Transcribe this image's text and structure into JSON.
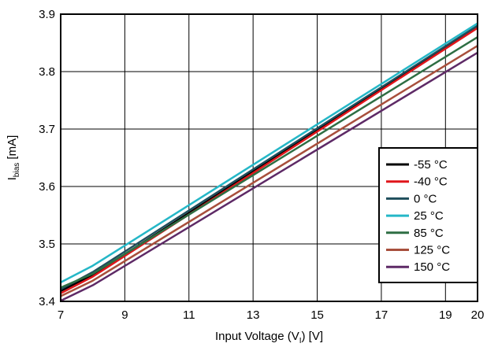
{
  "chart_data": {
    "type": "line",
    "title": "",
    "xlabel": {
      "main": "Input Voltage (V",
      "sub": "I",
      "tail": ") [V]"
    },
    "ylabel": {
      "main": "I",
      "sub": "bias",
      "tail": " [mA]"
    },
    "xlim": [
      7,
      20
    ],
    "ylim": [
      3.4,
      3.9
    ],
    "xticks": [
      7,
      9,
      11,
      13,
      15,
      17,
      19,
      20
    ],
    "xtick_labels": [
      "7",
      "9",
      "11",
      "13",
      "15",
      "17",
      "19",
      "20"
    ],
    "yticks": [
      3.4,
      3.5,
      3.6,
      3.7,
      3.8,
      3.9
    ],
    "ytick_labels": [
      "3.4",
      "3.5",
      "3.6",
      "3.7",
      "3.8",
      "3.9"
    ],
    "xgrid": [
      7,
      9,
      11,
      13,
      15,
      17,
      19
    ],
    "grid": true,
    "legend_position": "right",
    "x": [
      7,
      8,
      20
    ],
    "series": [
      {
        "name": "-55 °C",
        "color": "#000000",
        "values": [
          3.418,
          3.446,
          3.878
        ]
      },
      {
        "name": "-40 °C",
        "color": "#e0161b",
        "values": [
          3.414,
          3.443,
          3.876
        ]
      },
      {
        "name": "0 °C",
        "color": "#1f4e5c",
        "values": [
          3.421,
          3.451,
          3.88
        ]
      },
      {
        "name": "25 °C",
        "color": "#25b7c7",
        "values": [
          3.433,
          3.462,
          3.884
        ]
      },
      {
        "name": "85 °C",
        "color": "#2e6e43",
        "values": [
          3.424,
          3.448,
          3.86
        ]
      },
      {
        "name": "125 °C",
        "color": "#a84f3c",
        "values": [
          3.409,
          3.436,
          3.845
        ]
      },
      {
        "name": "150 °C",
        "color": "#5e2a66",
        "values": [
          3.401,
          3.428,
          3.833
        ]
      }
    ]
  }
}
